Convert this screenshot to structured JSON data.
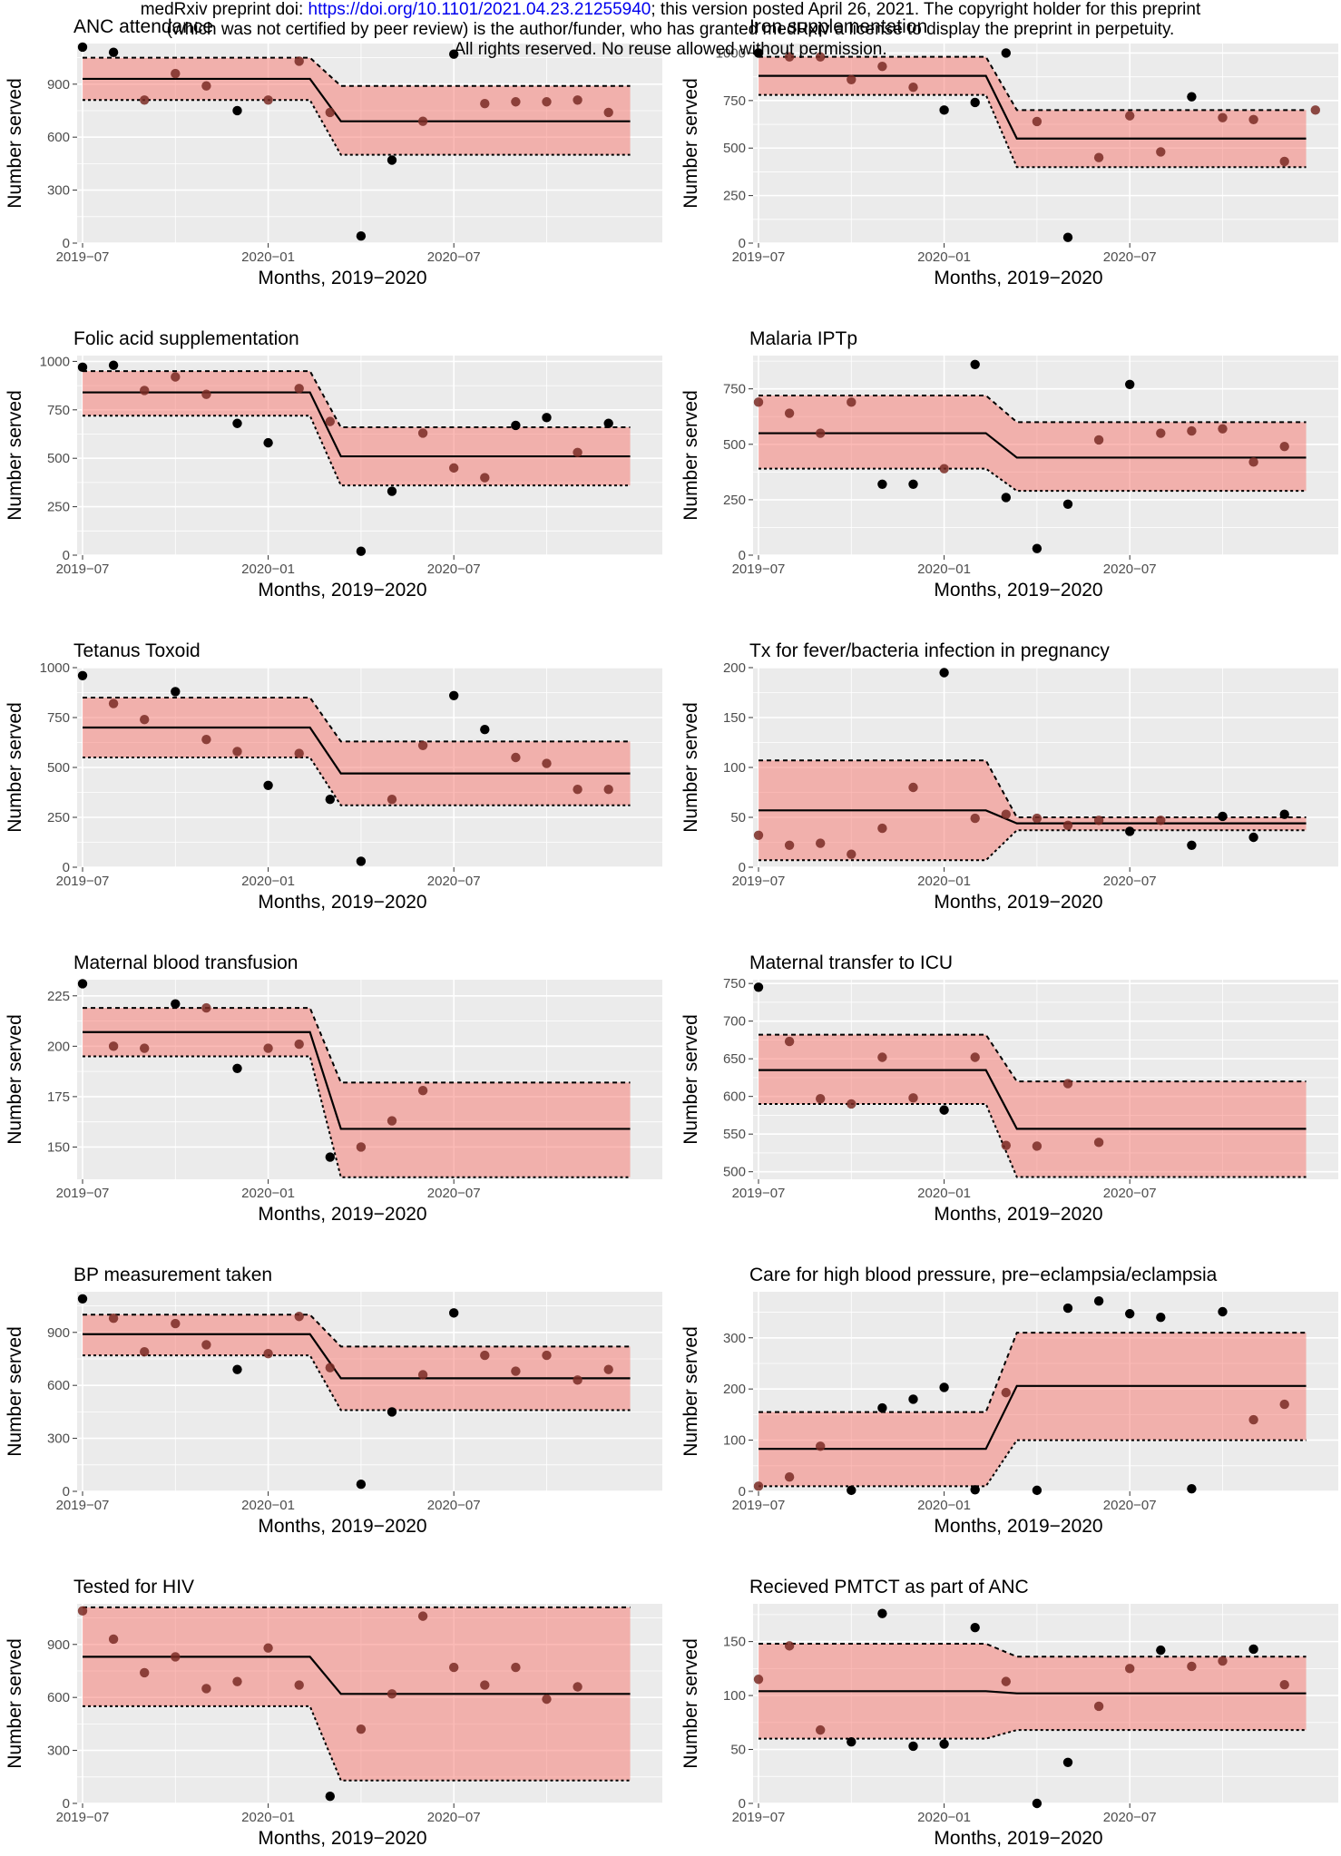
{
  "banner": {
    "line1_prefix": "medRxiv preprint doi: ",
    "line1_doi": "https://doi.org/10.1101/2021.04.23.21255940",
    "line1_suffix": "; this version posted April 26, 2021. The copyright holder for this preprint",
    "line2": "(which was not certified by peer review) is the author/funder, who has granted medRxiv a license to display the preprint in perpetuity.",
    "line3": "All rights reserved. No reuse allowed without permission."
  },
  "colors": {
    "panel_bg": "#ebebeb",
    "grid": "#ffffff",
    "band_fill": "#f8766d",
    "point": "#000000",
    "line": "#000000"
  },
  "chart_data": [
    {
      "type": "scatter",
      "title": "ANC attendance",
      "xlabel": "Months, 2019−2020",
      "ylabel": "Number served",
      "x_ticks": [
        "2019−07",
        "2020−01",
        "2020−07"
      ],
      "y_ticks": [
        0,
        300,
        600,
        900
      ],
      "ylim": [
        0,
        1130
      ],
      "points": [
        [
          0,
          1110
        ],
        [
          1,
          1080
        ],
        [
          2,
          810
        ],
        [
          3,
          960
        ],
        [
          4,
          890
        ],
        [
          5,
          750
        ],
        [
          6,
          810
        ],
        [
          7,
          1030
        ],
        [
          8,
          740
        ],
        [
          9,
          40
        ],
        [
          10,
          470
        ],
        [
          11,
          690
        ],
        [
          12,
          1070
        ],
        [
          13,
          790
        ],
        [
          14,
          800
        ],
        [
          15,
          800
        ],
        [
          16,
          810
        ],
        [
          17,
          740
        ]
      ],
      "fit": {
        "pre": 930,
        "post": 690,
        "upper_pre": 1050,
        "upper_post": 890,
        "lower_pre": 810,
        "lower_post": 500
      }
    },
    {
      "type": "scatter",
      "title": "Iron supplementation",
      "xlabel": "Months, 2019−2020",
      "ylabel": "Number served",
      "x_ticks": [
        "2019−07",
        "2020−01",
        "2020−07"
      ],
      "y_ticks": [
        0,
        250,
        500,
        750,
        1000
      ],
      "ylim": [
        0,
        1050
      ],
      "points": [
        [
          0,
          1000
        ],
        [
          1,
          980
        ],
        [
          2,
          980
        ],
        [
          3,
          860
        ],
        [
          4,
          930
        ],
        [
          5,
          820
        ],
        [
          6,
          700
        ],
        [
          7,
          740
        ],
        [
          8,
          1000
        ],
        [
          9,
          640
        ],
        [
          10,
          30
        ],
        [
          11,
          450
        ],
        [
          12,
          670
        ],
        [
          13,
          480
        ],
        [
          14,
          770
        ],
        [
          15,
          660
        ],
        [
          16,
          650
        ],
        [
          17,
          430
        ],
        [
          18,
          700
        ]
      ],
      "fit": {
        "pre": 880,
        "post": 550,
        "upper_pre": 980,
        "upper_post": 700,
        "lower_pre": 780,
        "lower_post": 400
      }
    },
    {
      "type": "scatter",
      "title": "Folic acid supplementation",
      "xlabel": "Months, 2019−2020",
      "ylabel": "Number served",
      "x_ticks": [
        "2019−07",
        "2020−01",
        "2020−07"
      ],
      "y_ticks": [
        0,
        250,
        500,
        750,
        1000
      ],
      "ylim": [
        0,
        1030
      ],
      "points": [
        [
          0,
          970
        ],
        [
          1,
          980
        ],
        [
          2,
          850
        ],
        [
          3,
          920
        ],
        [
          4,
          830
        ],
        [
          5,
          680
        ],
        [
          6,
          580
        ],
        [
          7,
          860
        ],
        [
          8,
          690
        ],
        [
          9,
          20
        ],
        [
          10,
          330
        ],
        [
          11,
          630
        ],
        [
          12,
          450
        ],
        [
          13,
          400
        ],
        [
          14,
          670
        ],
        [
          15,
          710
        ],
        [
          16,
          530
        ],
        [
          17,
          680
        ]
      ],
      "fit": {
        "pre": 840,
        "post": 510,
        "upper_pre": 950,
        "upper_post": 660,
        "lower_pre": 720,
        "lower_post": 360
      }
    },
    {
      "type": "scatter",
      "title": "Malaria IPTp",
      "xlabel": "Months, 2019−2020",
      "ylabel": "Number served",
      "x_ticks": [
        "2019−07",
        "2020−01",
        "2020−07"
      ],
      "y_ticks": [
        0,
        250,
        500,
        750
      ],
      "ylim": [
        0,
        900
      ],
      "points": [
        [
          0,
          690
        ],
        [
          1,
          640
        ],
        [
          2,
          550
        ],
        [
          3,
          690
        ],
        [
          4,
          320
        ],
        [
          5,
          320
        ],
        [
          6,
          390
        ],
        [
          7,
          860
        ],
        [
          8,
          260
        ],
        [
          9,
          30
        ],
        [
          10,
          230
        ],
        [
          11,
          520
        ],
        [
          12,
          770
        ],
        [
          13,
          550
        ],
        [
          14,
          560
        ],
        [
          15,
          570
        ],
        [
          16,
          420
        ],
        [
          17,
          490
        ]
      ],
      "fit": {
        "pre": 550,
        "post": 440,
        "upper_pre": 720,
        "upper_post": 600,
        "lower_pre": 390,
        "lower_post": 290
      }
    },
    {
      "type": "scatter",
      "title": "Tetanus Toxoid",
      "xlabel": "Months, 2019−2020",
      "ylabel": "Number served",
      "x_ticks": [
        "2019−07",
        "2020−01",
        "2020−07"
      ],
      "y_ticks": [
        0,
        250,
        500,
        750,
        1000
      ],
      "ylim": [
        0,
        1000
      ],
      "points": [
        [
          0,
          960
        ],
        [
          1,
          820
        ],
        [
          2,
          740
        ],
        [
          3,
          880
        ],
        [
          4,
          640
        ],
        [
          5,
          580
        ],
        [
          6,
          410
        ],
        [
          7,
          570
        ],
        [
          8,
          340
        ],
        [
          9,
          30
        ],
        [
          10,
          340
        ],
        [
          11,
          610
        ],
        [
          12,
          860
        ],
        [
          13,
          690
        ],
        [
          14,
          550
        ],
        [
          15,
          520
        ],
        [
          16,
          390
        ],
        [
          17,
          390
        ]
      ],
      "fit": {
        "pre": 700,
        "post": 470,
        "upper_pre": 850,
        "upper_post": 630,
        "lower_pre": 550,
        "lower_post": 310
      }
    },
    {
      "type": "scatter",
      "title": "Tx for fever/bacteria infection in pregnancy",
      "xlabel": "Months, 2019−2020",
      "ylabel": "Number served",
      "x_ticks": [
        "2019−07",
        "2020−01",
        "2020−07"
      ],
      "y_ticks": [
        0,
        50,
        100,
        150,
        200
      ],
      "ylim": [
        0,
        200
      ],
      "points": [
        [
          0,
          32
        ],
        [
          1,
          22
        ],
        [
          2,
          24
        ],
        [
          3,
          13
        ],
        [
          4,
          39
        ],
        [
          5,
          80
        ],
        [
          6,
          195
        ],
        [
          7,
          49
        ],
        [
          8,
          53
        ],
        [
          9,
          49
        ],
        [
          10,
          42
        ],
        [
          11,
          47
        ],
        [
          12,
          36
        ],
        [
          13,
          47
        ],
        [
          14,
          22
        ],
        [
          15,
          51
        ],
        [
          16,
          30
        ],
        [
          17,
          53
        ]
      ],
      "fit": {
        "pre": 57,
        "post": 44,
        "upper_pre": 107,
        "upper_post": 50,
        "lower_pre": 7,
        "lower_post": 37
      }
    },
    {
      "type": "scatter",
      "title": "Maternal blood transfusion",
      "xlabel": "Months, 2019−2020",
      "ylabel": "Number served",
      "x_ticks": [
        "2019−07",
        "2020−01",
        "2020−07"
      ],
      "y_ticks": [
        150,
        175,
        200,
        225
      ],
      "ylim": [
        134,
        233
      ],
      "points": [
        [
          0,
          231
        ],
        [
          1,
          200
        ],
        [
          2,
          199
        ],
        [
          3,
          221
        ],
        [
          4,
          219
        ],
        [
          5,
          189
        ],
        [
          6,
          199
        ],
        [
          7,
          201
        ],
        [
          8,
          145
        ],
        [
          9,
          150
        ],
        [
          10,
          163
        ],
        [
          11,
          178
        ]
      ],
      "fit": {
        "pre": 207,
        "post": 159,
        "upper_pre": 219,
        "upper_post": 182,
        "lower_pre": 195,
        "lower_post": 135
      }
    },
    {
      "type": "scatter",
      "title": "Maternal transfer to ICU",
      "xlabel": "Months, 2019−2020",
      "ylabel": "Number served",
      "x_ticks": [
        "2019−07",
        "2020−01",
        "2020−07"
      ],
      "y_ticks": [
        500,
        550,
        600,
        650,
        700,
        750
      ],
      "ylim": [
        490,
        755
      ],
      "points": [
        [
          0,
          745
        ],
        [
          1,
          673
        ],
        [
          2,
          597
        ],
        [
          3,
          590
        ],
        [
          4,
          652
        ],
        [
          5,
          598
        ],
        [
          6,
          582
        ],
        [
          7,
          652
        ],
        [
          8,
          535
        ],
        [
          9,
          534
        ],
        [
          10,
          617
        ],
        [
          11,
          539
        ]
      ],
      "fit": {
        "pre": 635,
        "post": 557,
        "upper_pre": 682,
        "upper_post": 620,
        "lower_pre": 590,
        "lower_post": 493
      }
    },
    {
      "type": "scatter",
      "title": "BP measurement taken",
      "xlabel": "Months, 2019−2020",
      "ylabel": "Number served",
      "x_ticks": [
        "2019−07",
        "2020−01",
        "2020−07"
      ],
      "y_ticks": [
        0,
        300,
        600,
        900
      ],
      "ylim": [
        0,
        1130
      ],
      "points": [
        [
          0,
          1090
        ],
        [
          1,
          980
        ],
        [
          2,
          790
        ],
        [
          3,
          950
        ],
        [
          4,
          830
        ],
        [
          5,
          690
        ],
        [
          6,
          780
        ],
        [
          7,
          990
        ],
        [
          8,
          700
        ],
        [
          9,
          40
        ],
        [
          10,
          450
        ],
        [
          11,
          660
        ],
        [
          12,
          1010
        ],
        [
          13,
          770
        ],
        [
          14,
          680
        ],
        [
          15,
          770
        ],
        [
          16,
          630
        ],
        [
          17,
          690
        ]
      ],
      "fit": {
        "pre": 890,
        "post": 640,
        "upper_pre": 1000,
        "upper_post": 820,
        "lower_pre": 770,
        "lower_post": 460
      }
    },
    {
      "type": "scatter",
      "title": "Care for high blood pressure, pre−eclampsia/eclampsia",
      "xlabel": "Months, 2019−2020",
      "ylabel": "Number served",
      "x_ticks": [
        "2019−07",
        "2020−01",
        "2020−07"
      ],
      "y_ticks": [
        0,
        100,
        200,
        300
      ],
      "ylim": [
        0,
        390
      ],
      "points": [
        [
          0,
          10
        ],
        [
          1,
          28
        ],
        [
          2,
          88
        ],
        [
          3,
          2
        ],
        [
          4,
          163
        ],
        [
          5,
          180
        ],
        [
          6,
          203
        ],
        [
          7,
          3
        ],
        [
          8,
          193
        ],
        [
          9,
          2
        ],
        [
          10,
          358
        ],
        [
          11,
          372
        ],
        [
          12,
          347
        ],
        [
          13,
          340
        ],
        [
          14,
          5
        ],
        [
          15,
          351
        ],
        [
          16,
          140
        ],
        [
          17,
          170
        ]
      ],
      "fit": {
        "pre": 83,
        "post": 206,
        "upper_pre": 155,
        "upper_post": 310,
        "lower_pre": 10,
        "lower_post": 100
      }
    },
    {
      "type": "scatter",
      "title": "Tested for HIV",
      "xlabel": "Months, 2019−2020",
      "ylabel": "Number served",
      "x_ticks": [
        "2019−07",
        "2020−01",
        "2020−07"
      ],
      "y_ticks": [
        0,
        300,
        600,
        900
      ],
      "ylim": [
        0,
        1130
      ],
      "points": [
        [
          0,
          1090
        ],
        [
          1,
          930
        ],
        [
          2,
          740
        ],
        [
          3,
          830
        ],
        [
          4,
          650
        ],
        [
          5,
          690
        ],
        [
          6,
          880
        ],
        [
          7,
          670
        ],
        [
          8,
          40
        ],
        [
          9,
          420
        ],
        [
          10,
          620
        ],
        [
          11,
          1060
        ],
        [
          12,
          770
        ],
        [
          13,
          670
        ],
        [
          14,
          770
        ],
        [
          15,
          590
        ],
        [
          16,
          660
        ]
      ],
      "fit": {
        "pre": 830,
        "post": 620,
        "upper_pre": 1110,
        "upper_post": 1110,
        "lower_pre": 550,
        "lower_post": 130
      }
    },
    {
      "type": "scatter",
      "title": "Recieved PMTCT as part of ANC",
      "xlabel": "Months, 2019−2020",
      "ylabel": "Number served",
      "x_ticks": [
        "2019−07",
        "2020−01",
        "2020−07"
      ],
      "y_ticks": [
        0,
        50,
        100,
        150
      ],
      "ylim": [
        0,
        185
      ],
      "points": [
        [
          0,
          115
        ],
        [
          1,
          146
        ],
        [
          2,
          68
        ],
        [
          3,
          57
        ],
        [
          4,
          176
        ],
        [
          5,
          53
        ],
        [
          6,
          55
        ],
        [
          7,
          163
        ],
        [
          8,
          113
        ],
        [
          9,
          0
        ],
        [
          10,
          38
        ],
        [
          11,
          90
        ],
        [
          12,
          125
        ],
        [
          13,
          142
        ],
        [
          14,
          127
        ],
        [
          15,
          132
        ],
        [
          16,
          143
        ],
        [
          17,
          110
        ]
      ],
      "fit": {
        "pre": 104,
        "post": 102,
        "upper_pre": 148,
        "upper_post": 136,
        "lower_pre": 60,
        "lower_post": 68
      }
    }
  ]
}
